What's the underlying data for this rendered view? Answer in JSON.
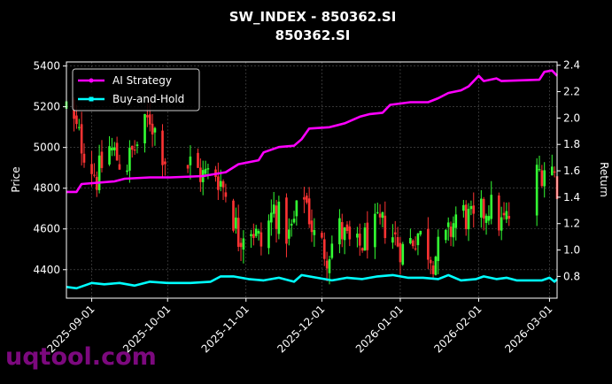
{
  "chart_data": {
    "type": "line",
    "title": "SW_INDEX - 850362.SI",
    "subtitle": "850362.SI",
    "xlabel": "",
    "ylabel_left": "Price",
    "ylabel_right": "Return",
    "x_range": [
      "2025-08-22",
      "2026-03-04"
    ],
    "y_left_range": [
      4260,
      5420
    ],
    "y_right_range": [
      0.635,
      2.425
    ],
    "x_ticks": [
      "2025-09-01",
      "2025-10-01",
      "2025-11-01",
      "2025-12-01",
      "2026-01-01",
      "2026-02-01",
      "2026-03-01"
    ],
    "y_left_ticks": [
      4400,
      4600,
      4800,
      5000,
      5200,
      5400
    ],
    "y_right_ticks": [
      "0.8",
      "1.0",
      "1.2",
      "1.4",
      "1.6",
      "1.8",
      "2.0",
      "2.2",
      "2.4"
    ],
    "grid": true,
    "legend_position": "top-left",
    "colors": {
      "background": "#000000",
      "ai_strategy": "#ff00ff",
      "buy_and_hold": "#00ffff",
      "candle_up": "#33ff33",
      "candle_down": "#ff3333",
      "grid": "#555555",
      "axes": "#ffffff"
    },
    "price_anchors": [
      {
        "date": "2025-08-22",
        "close": 5200
      },
      {
        "date": "2025-08-28",
        "close": 5020
      },
      {
        "date": "2025-09-03",
        "close": 4850
      },
      {
        "date": "2025-09-08",
        "close": 5000
      },
      {
        "date": "2025-09-14",
        "close": 4900
      },
      {
        "date": "2025-09-20",
        "close": 5040
      },
      {
        "date": "2025-09-24",
        "close": 5150
      },
      {
        "date": "2025-09-30",
        "close": 4950
      },
      {
        "date": "2025-10-05",
        "close": 4880
      },
      {
        "date": "2025-10-10",
        "close": 4920
      },
      {
        "date": "2025-10-15",
        "close": 4860
      },
      {
        "date": "2025-10-20",
        "close": 4880
      },
      {
        "date": "2025-10-25",
        "close": 4760
      },
      {
        "date": "2025-10-29",
        "close": 4560
      },
      {
        "date": "2025-11-02",
        "close": 4640
      },
      {
        "date": "2025-11-07",
        "close": 4520
      },
      {
        "date": "2025-11-12",
        "close": 4700
      },
      {
        "date": "2025-11-18",
        "close": 4560
      },
      {
        "date": "2025-11-24",
        "close": 4780
      },
      {
        "date": "2025-11-28",
        "close": 4560
      },
      {
        "date": "2025-12-03",
        "close": 4480
      },
      {
        "date": "2025-12-08",
        "close": 4600
      },
      {
        "date": "2025-12-14",
        "close": 4480
      },
      {
        "date": "2025-12-20",
        "close": 4580
      },
      {
        "date": "2025-12-26",
        "close": 4620
      },
      {
        "date": "2026-01-02",
        "close": 4500
      },
      {
        "date": "2026-01-08",
        "close": 4580
      },
      {
        "date": "2026-01-14",
        "close": 4460
      },
      {
        "date": "2026-01-20",
        "close": 4560
      },
      {
        "date": "2026-01-24",
        "close": 4700
      },
      {
        "date": "2026-01-30",
        "close": 4620
      },
      {
        "date": "2026-02-05",
        "close": 4720
      },
      {
        "date": "2026-02-10",
        "close": 4620
      },
      {
        "date": "2026-02-16",
        "close": 4700
      },
      {
        "date": "2026-02-20",
        "close": 4800
      },
      {
        "date": "2026-02-25",
        "close": 4880
      },
      {
        "date": "2026-03-01",
        "close": 4940
      },
      {
        "date": "2026-03-04",
        "close": 4820
      }
    ],
    "price_gaps": [
      [
        "2025-10-01",
        "2025-10-08"
      ],
      [
        "2026-02-14",
        "2026-02-23"
      ]
    ],
    "series": [
      {
        "name": "AI Strategy",
        "points": [
          {
            "date": "2025-08-22",
            "value": 1.44
          },
          {
            "date": "2025-08-26",
            "value": 1.44
          },
          {
            "date": "2025-08-28",
            "value": 1.5
          },
          {
            "date": "2025-09-10",
            "value": 1.52
          },
          {
            "date": "2025-09-14",
            "value": 1.54
          },
          {
            "date": "2025-09-24",
            "value": 1.55
          },
          {
            "date": "2025-10-02",
            "value": 1.55
          },
          {
            "date": "2025-10-15",
            "value": 1.56
          },
          {
            "date": "2025-10-24",
            "value": 1.59
          },
          {
            "date": "2025-10-29",
            "value": 1.65
          },
          {
            "date": "2025-11-06",
            "value": 1.68
          },
          {
            "date": "2025-11-08",
            "value": 1.74
          },
          {
            "date": "2025-11-14",
            "value": 1.78
          },
          {
            "date": "2025-11-20",
            "value": 1.79
          },
          {
            "date": "2025-11-23",
            "value": 1.84
          },
          {
            "date": "2025-11-26",
            "value": 1.92
          },
          {
            "date": "2025-12-04",
            "value": 1.93
          },
          {
            "date": "2025-12-10",
            "value": 1.96
          },
          {
            "date": "2025-12-16",
            "value": 2.01
          },
          {
            "date": "2025-12-20",
            "value": 2.03
          },
          {
            "date": "2025-12-25",
            "value": 2.04
          },
          {
            "date": "2025-12-28",
            "value": 2.1
          },
          {
            "date": "2026-01-05",
            "value": 2.12
          },
          {
            "date": "2026-01-12",
            "value": 2.12
          },
          {
            "date": "2026-01-16",
            "value": 2.15
          },
          {
            "date": "2026-01-20",
            "value": 2.19
          },
          {
            "date": "2026-01-25",
            "value": 2.21
          },
          {
            "date": "2026-01-28",
            "value": 2.24
          },
          {
            "date": "2026-02-01",
            "value": 2.32
          },
          {
            "date": "2026-02-03",
            "value": 2.28
          },
          {
            "date": "2026-02-08",
            "value": 2.3
          },
          {
            "date": "2026-02-10",
            "value": 2.28
          },
          {
            "date": "2026-02-25",
            "value": 2.29
          },
          {
            "date": "2026-02-27",
            "value": 2.35
          },
          {
            "date": "2026-03-02",
            "value": 2.36
          },
          {
            "date": "2026-03-04",
            "value": 2.32
          }
        ]
      },
      {
        "name": "Buy-and-Hold",
        "points": [
          {
            "date": "2025-08-22",
            "value": 0.72
          },
          {
            "date": "2025-08-26",
            "value": 0.71
          },
          {
            "date": "2025-09-01",
            "value": 0.75
          },
          {
            "date": "2025-09-06",
            "value": 0.74
          },
          {
            "date": "2025-09-12",
            "value": 0.75
          },
          {
            "date": "2025-09-18",
            "value": 0.73
          },
          {
            "date": "2025-09-24",
            "value": 0.76
          },
          {
            "date": "2025-10-01",
            "value": 0.75
          },
          {
            "date": "2025-10-10",
            "value": 0.75
          },
          {
            "date": "2025-10-18",
            "value": 0.76
          },
          {
            "date": "2025-10-22",
            "value": 0.8
          },
          {
            "date": "2025-10-27",
            "value": 0.8
          },
          {
            "date": "2025-11-02",
            "value": 0.78
          },
          {
            "date": "2025-11-08",
            "value": 0.77
          },
          {
            "date": "2025-11-14",
            "value": 0.79
          },
          {
            "date": "2025-11-20",
            "value": 0.76
          },
          {
            "date": "2025-11-23",
            "value": 0.81
          },
          {
            "date": "2025-11-29",
            "value": 0.79
          },
          {
            "date": "2025-12-05",
            "value": 0.77
          },
          {
            "date": "2025-12-11",
            "value": 0.79
          },
          {
            "date": "2025-12-17",
            "value": 0.78
          },
          {
            "date": "2025-12-23",
            "value": 0.8
          },
          {
            "date": "2025-12-29",
            "value": 0.81
          },
          {
            "date": "2026-01-04",
            "value": 0.79
          },
          {
            "date": "2026-01-10",
            "value": 0.79
          },
          {
            "date": "2026-01-16",
            "value": 0.78
          },
          {
            "date": "2026-01-20",
            "value": 0.81
          },
          {
            "date": "2026-01-25",
            "value": 0.77
          },
          {
            "date": "2026-01-31",
            "value": 0.78
          },
          {
            "date": "2026-02-03",
            "value": 0.8
          },
          {
            "date": "2026-02-08",
            "value": 0.78
          },
          {
            "date": "2026-02-12",
            "value": 0.79
          },
          {
            "date": "2026-02-16",
            "value": 0.77
          },
          {
            "date": "2026-02-26",
            "value": 0.77
          },
          {
            "date": "2026-03-01",
            "value": 0.79
          },
          {
            "date": "2026-03-03",
            "value": 0.76
          },
          {
            "date": "2026-03-04",
            "value": 0.78
          }
        ]
      }
    ]
  },
  "watermark": "uqtool.com"
}
